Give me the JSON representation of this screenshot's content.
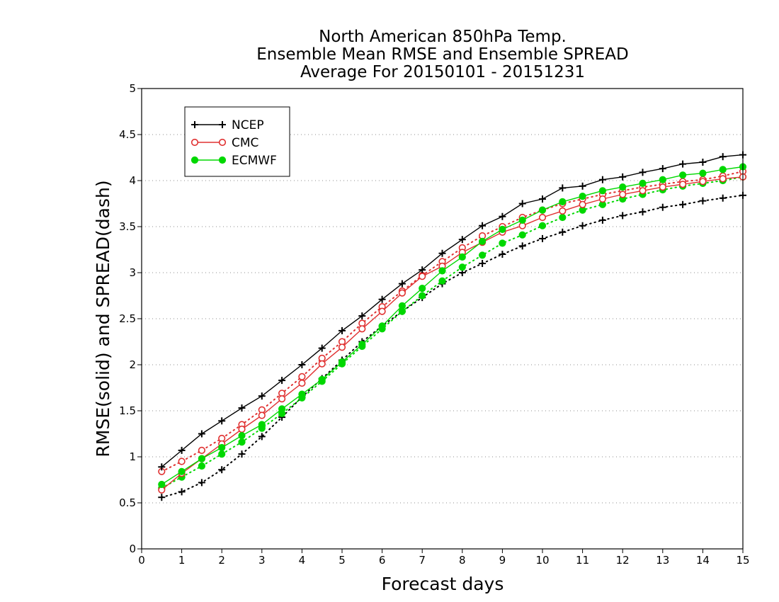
{
  "chart_data": {
    "type": "line",
    "title": [
      "North American 850hPa Temp.",
      "Ensemble Mean RMSE and Ensemble SPREAD",
      "Average For 20150101 - 20151231"
    ],
    "xlabel": "Forecast days",
    "ylabel": "RMSE(solid) and SPREAD(dash)",
    "xlim": [
      0,
      15
    ],
    "ylim": [
      0,
      5
    ],
    "xticks": [
      "0",
      "1",
      "2",
      "3",
      "4",
      "5",
      "6",
      "7",
      "8",
      "9",
      "10",
      "11",
      "12",
      "13",
      "14",
      "15"
    ],
    "yticks": [
      "0",
      "0.5",
      "1",
      "1.5",
      "2",
      "2.5",
      "3",
      "3.5",
      "4",
      "4.5",
      "5"
    ],
    "grid": "dotted horizontal",
    "legend": {
      "position": "top-left",
      "entries": [
        "NCEP",
        "CMC",
        "ECMWF"
      ]
    },
    "x": [
      0.5,
      1,
      1.5,
      2,
      2.5,
      3,
      3.5,
      4,
      4.5,
      5,
      5.5,
      6,
      6.5,
      7,
      7.5,
      8,
      8.5,
      9,
      9.5,
      10,
      10.5,
      11,
      11.5,
      12,
      12.5,
      13,
      13.5,
      14,
      14.5,
      15
    ],
    "series": [
      {
        "name": "NCEP",
        "metric": "RMSE",
        "style": "solid",
        "marker": "plus",
        "color": "#000000",
        "values": [
          0.89,
          1.07,
          1.25,
          1.39,
          1.53,
          1.66,
          1.83,
          2.0,
          2.18,
          2.37,
          2.53,
          2.71,
          2.88,
          3.03,
          3.21,
          3.36,
          3.51,
          3.61,
          3.75,
          3.8,
          3.92,
          3.94,
          4.01,
          4.04,
          4.09,
          4.13,
          4.18,
          4.2,
          4.26,
          4.28
        ]
      },
      {
        "name": "NCEP",
        "metric": "SPREAD",
        "style": "dotted",
        "marker": "plus",
        "color": "#000000",
        "values": [
          0.56,
          0.62,
          0.72,
          0.86,
          1.03,
          1.22,
          1.43,
          1.65,
          1.85,
          2.05,
          2.25,
          2.42,
          2.58,
          2.73,
          2.88,
          3.0,
          3.1,
          3.2,
          3.29,
          3.37,
          3.44,
          3.51,
          3.57,
          3.62,
          3.66,
          3.71,
          3.74,
          3.78,
          3.81,
          3.84
        ]
      },
      {
        "name": "CMC",
        "metric": "RMSE",
        "style": "solid",
        "marker": "open-circle",
        "color": "#e03030",
        "values": [
          0.64,
          0.82,
          0.98,
          1.14,
          1.3,
          1.45,
          1.63,
          1.8,
          2.01,
          2.19,
          2.39,
          2.58,
          2.78,
          2.96,
          3.07,
          3.22,
          3.33,
          3.44,
          3.51,
          3.6,
          3.67,
          3.74,
          3.8,
          3.85,
          3.89,
          3.93,
          3.96,
          3.99,
          4.02,
          4.04
        ]
      },
      {
        "name": "CMC",
        "metric": "SPREAD",
        "style": "dotted",
        "marker": "open-circle",
        "color": "#e03030",
        "values": [
          0.84,
          0.95,
          1.07,
          1.2,
          1.35,
          1.51,
          1.69,
          1.87,
          2.07,
          2.25,
          2.45,
          2.63,
          2.8,
          2.97,
          3.12,
          3.27,
          3.4,
          3.5,
          3.6,
          3.68,
          3.75,
          3.8,
          3.85,
          3.89,
          3.93,
          3.96,
          3.99,
          4.01,
          4.05,
          4.1
        ]
      },
      {
        "name": "ECMWF",
        "metric": "RMSE",
        "style": "solid",
        "marker": "filled-circle",
        "color": "#00d800",
        "values": [
          0.7,
          0.84,
          0.98,
          1.1,
          1.23,
          1.35,
          1.52,
          1.68,
          1.84,
          2.03,
          2.22,
          2.42,
          2.64,
          2.83,
          3.02,
          3.17,
          3.34,
          3.47,
          3.57,
          3.68,
          3.77,
          3.83,
          3.89,
          3.93,
          3.97,
          4.01,
          4.06,
          4.08,
          4.12,
          4.15
        ]
      },
      {
        "name": "ECMWF",
        "metric": "SPREAD",
        "style": "dotted",
        "marker": "filled-circle",
        "color": "#00d800",
        "values": [
          0.66,
          0.78,
          0.9,
          1.03,
          1.16,
          1.31,
          1.47,
          1.64,
          1.82,
          2.01,
          2.2,
          2.39,
          2.58,
          2.75,
          2.91,
          3.06,
          3.19,
          3.32,
          3.41,
          3.51,
          3.6,
          3.68,
          3.74,
          3.8,
          3.85,
          3.9,
          3.94,
          3.97,
          4.0,
          4.04
        ]
      }
    ]
  }
}
